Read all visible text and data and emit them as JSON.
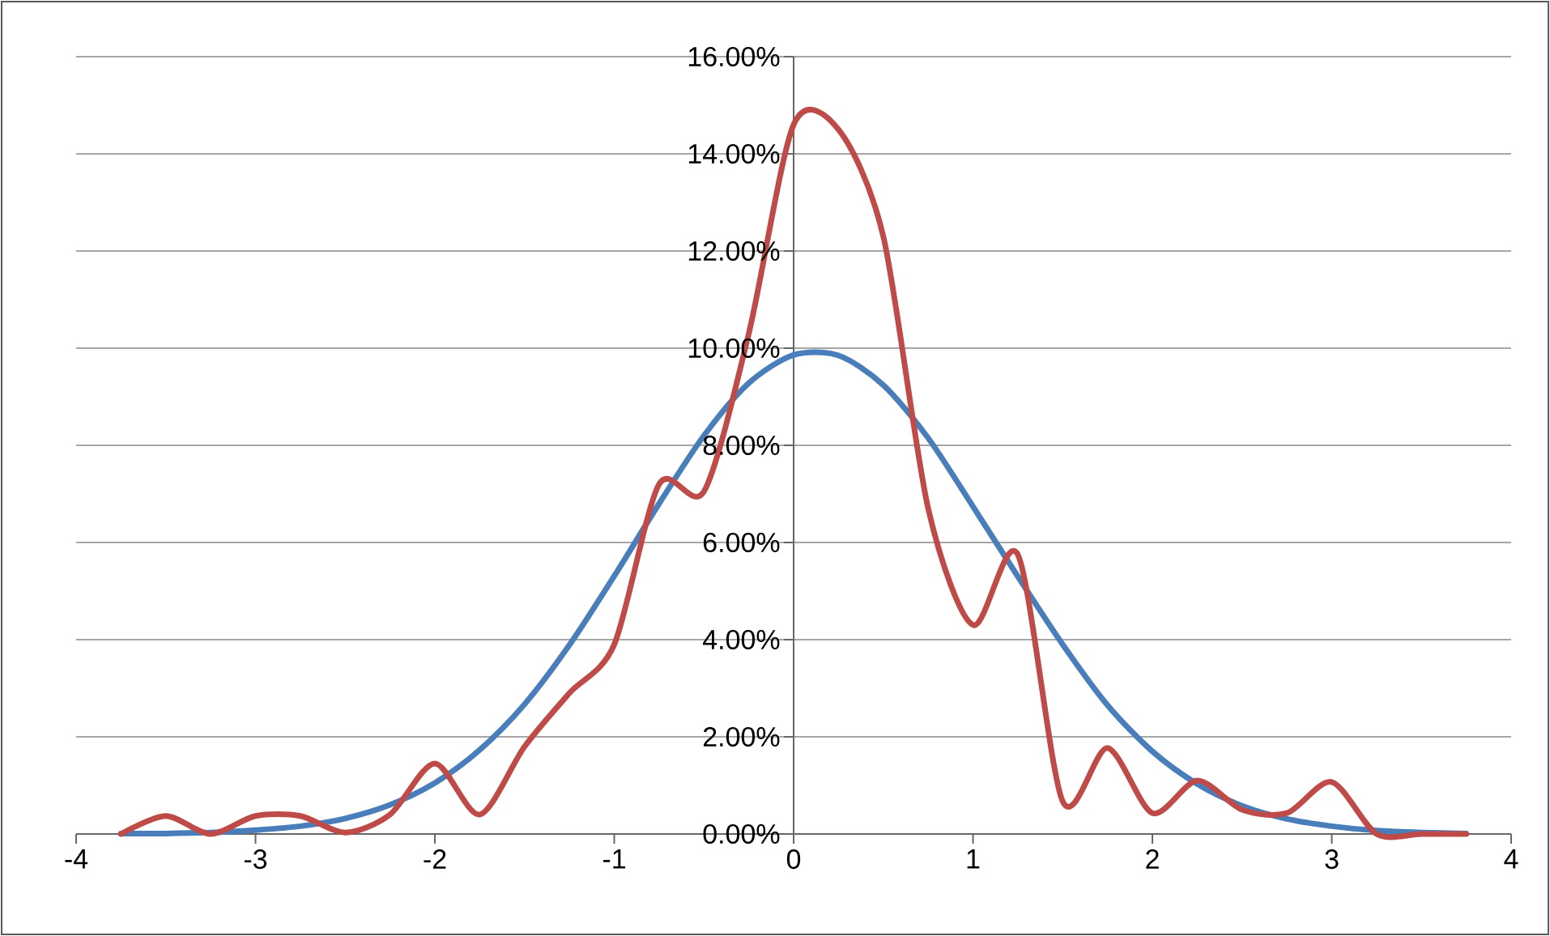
{
  "chart_data": {
    "type": "line",
    "x": [
      -3.75,
      -3.5,
      -3.25,
      -3,
      -2.75,
      -2.5,
      -2.25,
      -2,
      -1.75,
      -1.5,
      -1.25,
      -1,
      -0.75,
      -0.5,
      -0.25,
      0,
      0.25,
      0.5,
      0.75,
      1,
      1.25,
      1.5,
      1.75,
      2,
      2.25,
      2.5,
      2.75,
      3,
      3.25,
      3.5,
      3.75
    ],
    "series": [
      {
        "color": "#4a7ebb",
        "values": [
          0.01,
          0.01,
          0.03,
          0.08,
          0.16,
          0.32,
          0.6,
          1.05,
          1.73,
          2.67,
          3.89,
          5.31,
          6.8,
          8.2,
          9.28,
          9.86,
          9.85,
          9.24,
          8.15,
          6.74,
          5.3,
          3.9,
          2.65,
          1.7,
          1.03,
          0.58,
          0.31,
          0.16,
          0.07,
          0.03,
          0.01
        ]
      },
      {
        "color": "#be4b48",
        "values": [
          0,
          0.37,
          0,
          0.37,
          0.37,
          0.03,
          0.4,
          1.45,
          0.4,
          1.8,
          2.9,
          3.9,
          7.2,
          7.05,
          10.3,
          14.6,
          14.5,
          12.3,
          6.7,
          4.3,
          5.75,
          0.67,
          1.77,
          0.43,
          1.1,
          0.5,
          0.43,
          1.07,
          0,
          0,
          0
        ]
      }
    ],
    "xlim": [
      -4,
      4
    ],
    "xticks": [
      -4,
      -3,
      -2,
      -1,
      0,
      1,
      2,
      3,
      4
    ],
    "ylim": [
      0,
      16
    ],
    "yticks": [
      {
        "value": 0,
        "label": "0.00%"
      },
      {
        "value": 2,
        "label": "2.00%"
      },
      {
        "value": 4,
        "label": "4.00%"
      },
      {
        "value": 6,
        "label": "6.00%"
      },
      {
        "value": 8,
        "label": "8.00%"
      },
      {
        "value": 10,
        "label": "10.00%"
      },
      {
        "value": 12,
        "label": "12.00%"
      },
      {
        "value": 14,
        "label": "14.00%"
      },
      {
        "value": 16,
        "label": "16.00%"
      }
    ],
    "grid": "y",
    "marker": "none",
    "line_style": "solid"
  }
}
